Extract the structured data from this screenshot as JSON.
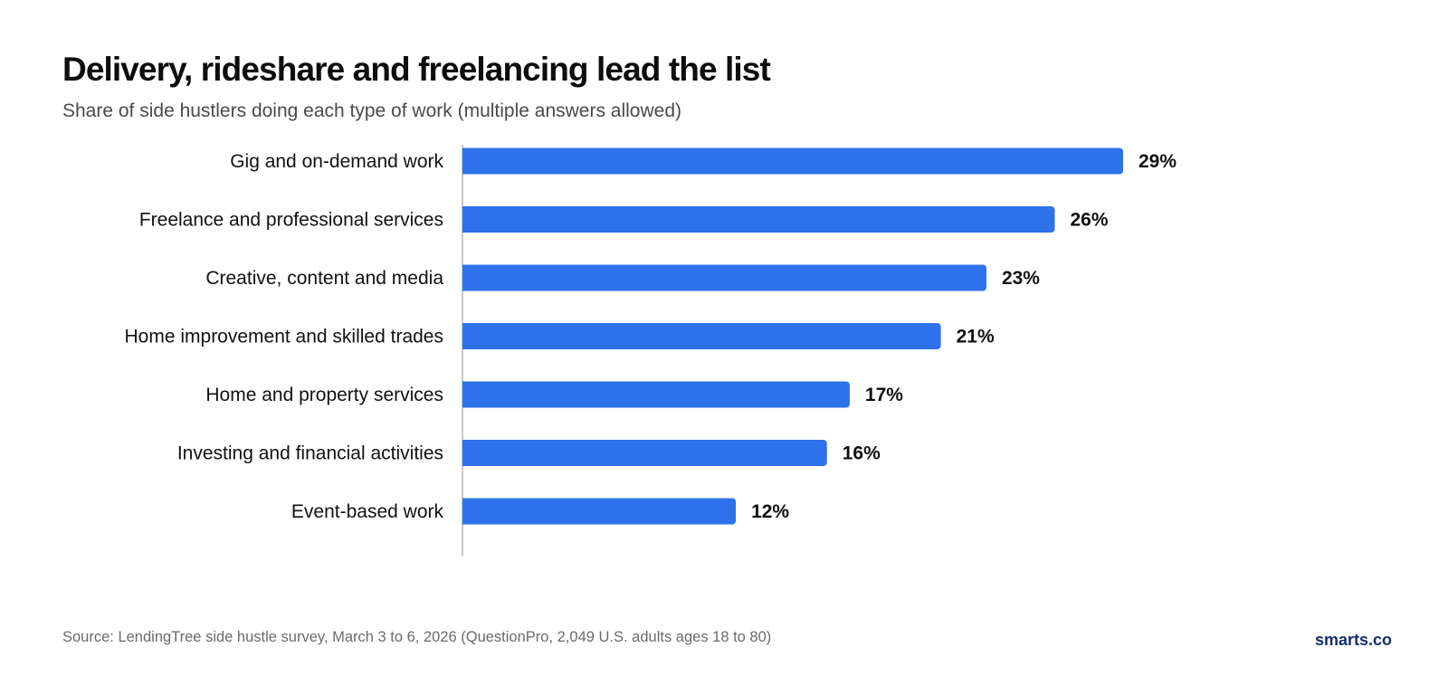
{
  "header": {
    "title": "Delivery, rideshare and freelancing lead the list",
    "subtitle": "Share of side hustlers doing each type of work (multiple answers allowed)"
  },
  "chart_data": {
    "type": "bar",
    "orientation": "horizontal",
    "categories": [
      "Gig and on-demand work",
      "Freelance and professional services",
      "Creative, content and media",
      "Home improvement and skilled trades",
      "Home and property services",
      "Investing and financial activities",
      "Event-based work"
    ],
    "values": [
      29,
      26,
      23,
      21,
      17,
      16,
      12
    ],
    "value_labels": [
      "29%",
      "26%",
      "23%",
      "21%",
      "17%",
      "16%",
      "12%"
    ],
    "unit": "%",
    "xlim": [
      0,
      29
    ],
    "grid": false,
    "legend": "none",
    "bar_color": "#2d72ea"
  },
  "footer": {
    "source": "Source: LendingTree side hustle survey, March 3 to 6, 2026 (QuestionPro, 2,049 U.S. adults ages 18 to 80)",
    "brand": "smarts.co"
  },
  "colors": {
    "bar": "#2d72ea",
    "axis": "#b5b5b5",
    "brand": "#15306b",
    "subtitle": "#4a4a4a",
    "source": "#6b6b6b"
  }
}
